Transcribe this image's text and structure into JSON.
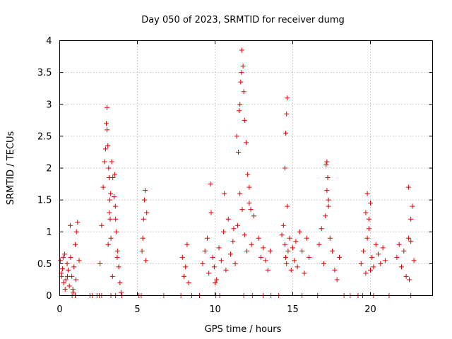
{
  "chart_data": {
    "type": "scatter",
    "title": "Day 050 of 2023, SRMTID for receiver dumg",
    "xlabel": "GPS time / hours",
    "ylabel": "SRMTID / TECUs",
    "xlim": [
      0,
      24
    ],
    "ylim": [
      0,
      4
    ],
    "grid": true,
    "marker": "+",
    "marker_color": "#e00000",
    "x_ticks": [
      "0",
      "5",
      "10",
      "15",
      "20"
    ],
    "x_tick_values": [
      0,
      5,
      10,
      15,
      20
    ],
    "y_ticks": [
      "0",
      "0.5",
      "1",
      "1.5",
      "2",
      "2.5",
      "3",
      "3.5",
      "4"
    ],
    "y_tick_values": [
      0,
      0.5,
      1,
      1.5,
      2,
      2.5,
      3,
      3.5,
      4
    ],
    "series": [
      {
        "name": "SRMTID",
        "x": [
          0.05,
          0.12,
          0.18,
          0.25,
          0.32,
          0.4,
          0.48,
          0.55,
          0.62,
          0.7,
          0.78,
          0.85,
          0.92,
          1.0,
          1.08,
          1.15,
          1.25,
          0.1,
          0.22,
          0.35,
          0.5,
          0.68,
          0.88,
          1.05,
          2.6,
          2.7,
          2.8,
          2.88,
          2.95,
          3.0,
          3.05,
          3.12,
          3.2,
          3.28,
          3.35,
          3.42,
          3.5,
          3.58,
          3.65,
          3.72,
          3.8,
          3.88,
          3.95,
          3.05,
          3.1,
          3.15,
          3.18,
          3.22,
          3.25,
          3.3,
          3.4,
          3.55,
          3.6,
          3.7,
          5.3,
          5.35,
          5.4,
          5.45,
          5.5,
          5.55,
          5.6,
          7.9,
          8.0,
          8.1,
          8.2,
          8.3,
          9.2,
          9.35,
          9.5,
          9.6,
          9.75,
          9.85,
          9.95,
          10.1,
          10.25,
          10.4,
          10.55,
          10.7,
          10.85,
          11.0,
          11.15,
          11.3,
          11.45,
          11.6,
          11.75,
          11.9,
          12.05,
          12.2,
          12.35,
          12.5,
          9.7,
          10.0,
          10.6,
          11.2,
          11.4,
          11.5,
          11.55,
          11.6,
          11.65,
          11.7,
          11.72,
          11.8,
          11.85,
          11.9,
          12.0,
          12.1,
          12.2,
          12.3,
          12.8,
          12.95,
          13.1,
          13.25,
          13.4,
          13.55,
          14.3,
          14.4,
          14.5,
          14.55,
          14.6,
          14.65,
          14.7,
          14.8,
          14.9,
          15.0,
          15.1,
          15.2,
          15.3,
          15.45,
          15.6,
          15.75,
          15.9,
          16.05,
          14.5,
          14.55,
          14.6,
          14.65,
          16.7,
          16.85,
          17.0,
          17.1,
          17.2,
          17.3,
          17.4,
          17.55,
          17.7,
          17.85,
          18.0,
          17.15,
          17.2,
          17.25,
          17.3,
          19.4,
          19.55,
          19.7,
          19.8,
          19.9,
          20.0,
          20.1,
          20.2,
          20.35,
          20.5,
          20.65,
          20.8,
          20.95,
          19.7,
          19.8,
          19.9,
          20.0,
          21.7,
          21.85,
          22.0,
          22.15,
          22.3,
          22.45,
          22.6,
          22.7,
          22.8,
          22.45,
          22.5,
          22.6,
          0.8,
          1.0,
          1.95,
          2.1,
          2.4,
          2.55,
          2.7,
          3.3,
          3.6,
          4.0,
          5.1,
          5.25,
          6.7,
          7.8,
          8.5,
          9.0,
          10.05,
          10.3,
          11.85,
          12.4,
          13.1,
          13.6,
          14.1,
          15.6,
          16.6,
          18.3,
          18.7,
          19.2,
          19.5,
          20.2,
          21.2,
          22.6
        ],
        "y": [
          0.55,
          0.3,
          0.42,
          0.2,
          0.65,
          0.25,
          0.5,
          0.4,
          0.15,
          0.6,
          0.3,
          0.1,
          0.45,
          0.8,
          1.0,
          1.15,
          0.55,
          0.35,
          0.6,
          0.1,
          0.3,
          1.1,
          0.05,
          0.25,
          0.5,
          1.1,
          1.7,
          2.1,
          2.3,
          2.7,
          2.95,
          0.8,
          1.3,
          1.6,
          2.1,
          1.85,
          1.55,
          1.4,
          1.0,
          0.7,
          0.45,
          0.2,
          0.05,
          2.6,
          2.35,
          2.0,
          1.85,
          1.5,
          1.2,
          0.9,
          0.3,
          1.9,
          1.2,
          0.6,
          0.7,
          0.9,
          1.2,
          1.5,
          1.65,
          0.55,
          1.3,
          0.6,
          0.3,
          0.45,
          0.8,
          0.2,
          0.5,
          0.7,
          0.9,
          0.35,
          1.3,
          0.6,
          0.45,
          0.25,
          0.75,
          0.55,
          1.0,
          0.4,
          1.2,
          0.65,
          0.85,
          0.5,
          1.1,
          1.6,
          1.35,
          0.95,
          0.7,
          1.45,
          0.8,
          1.25,
          1.75,
          0.2,
          1.6,
          1.05,
          2.5,
          2.25,
          2.9,
          3.0,
          3.35,
          3.5,
          3.85,
          3.6,
          3.2,
          2.75,
          2.4,
          1.9,
          1.7,
          1.35,
          0.9,
          0.6,
          0.75,
          0.55,
          0.4,
          0.7,
          0.95,
          1.1,
          0.8,
          0.6,
          0.5,
          1.4,
          0.7,
          0.9,
          0.4,
          0.75,
          0.55,
          0.85,
          0.45,
          1.0,
          0.7,
          0.35,
          0.9,
          0.6,
          2.0,
          2.55,
          2.85,
          3.1,
          0.8,
          1.05,
          0.5,
          1.25,
          1.65,
          1.4,
          0.9,
          0.7,
          0.4,
          0.25,
          0.6,
          2.05,
          2.1,
          1.85,
          1.5,
          0.5,
          0.7,
          0.35,
          0.9,
          1.2,
          1.45,
          0.6,
          0.45,
          0.8,
          0.65,
          0.5,
          0.75,
          0.55,
          1.3,
          1.6,
          1.05,
          0.4,
          0.6,
          0.8,
          0.45,
          0.7,
          0.3,
          0.9,
          1.2,
          1.4,
          0.55,
          1.7,
          0.25,
          0.85,
          0,
          0,
          0,
          0,
          0,
          0,
          0,
          0,
          0,
          0,
          0,
          0,
          0,
          0,
          0,
          0,
          0,
          0,
          0,
          0,
          0,
          0,
          0,
          0,
          0,
          0,
          0,
          0,
          0,
          0,
          0,
          0
        ]
      }
    ]
  }
}
